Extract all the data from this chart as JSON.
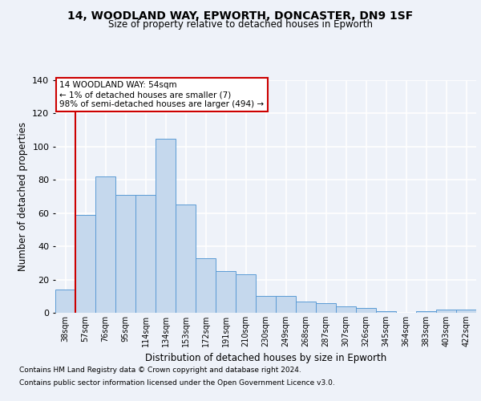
{
  "title1": "14, WOODLAND WAY, EPWORTH, DONCASTER, DN9 1SF",
  "title2": "Size of property relative to detached houses in Epworth",
  "xlabel": "Distribution of detached houses by size in Epworth",
  "ylabel": "Number of detached properties",
  "footnote1": "Contains HM Land Registry data © Crown copyright and database right 2024.",
  "footnote2": "Contains public sector information licensed under the Open Government Licence v3.0.",
  "annotation_line1": "14 WOODLAND WAY: 54sqm",
  "annotation_line2": "← 1% of detached houses are smaller (7)",
  "annotation_line3": "98% of semi-detached houses are larger (494) →",
  "bar_color": "#c5d8ed",
  "bar_edge_color": "#5b9bd5",
  "reference_line_color": "#cc0000",
  "categories": [
    "38sqm",
    "57sqm",
    "76sqm",
    "95sqm",
    "114sqm",
    "134sqm",
    "153sqm",
    "172sqm",
    "191sqm",
    "210sqm",
    "230sqm",
    "249sqm",
    "268sqm",
    "287sqm",
    "307sqm",
    "326sqm",
    "345sqm",
    "364sqm",
    "383sqm",
    "403sqm",
    "422sqm"
  ],
  "values": [
    14,
    59,
    82,
    71,
    71,
    105,
    65,
    33,
    25,
    23,
    10,
    10,
    7,
    6,
    4,
    3,
    1,
    0,
    1,
    2,
    2
  ],
  "ylim": [
    0,
    140
  ],
  "yticks": [
    0,
    20,
    40,
    60,
    80,
    100,
    120,
    140
  ],
  "background_color": "#eef2f9",
  "grid_color": "#ffffff"
}
